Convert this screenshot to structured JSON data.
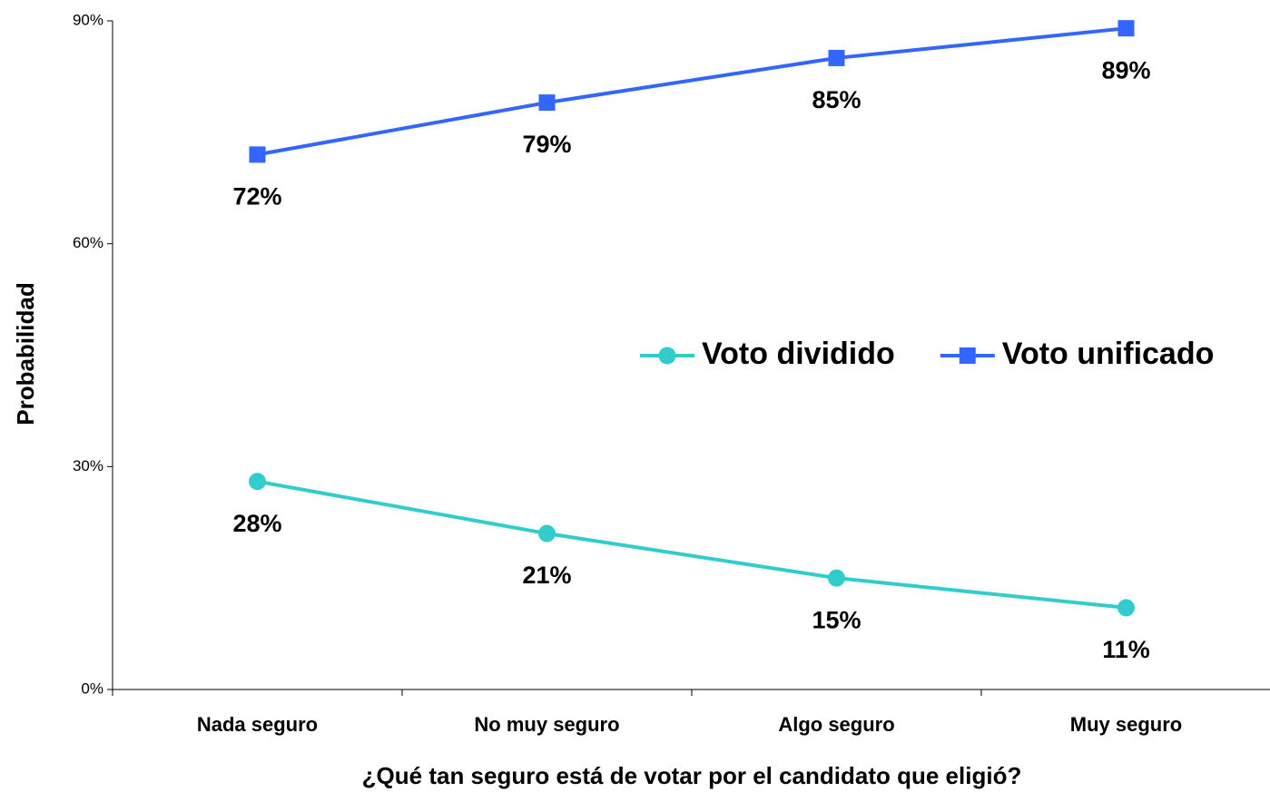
{
  "chart_data": {
    "type": "line",
    "x_label": "¿Qué tan seguro está de votar por el candidato que eligió?",
    "y_label": "Probabilidad",
    "categories": [
      "Nada seguro",
      "No muy seguro",
      "Algo seguro",
      "Muy seguro"
    ],
    "series": [
      {
        "name": "Voto dividido",
        "color": "#33cccc",
        "marker": "circle",
        "values": [
          28,
          21,
          15,
          11
        ],
        "value_labels": [
          "28%",
          "21%",
          "15%",
          "11%"
        ]
      },
      {
        "name": "Voto unificado",
        "color": "#3366ff",
        "marker": "square",
        "values": [
          72,
          79,
          85,
          89
        ],
        "value_labels": [
          "72%",
          "79%",
          "85%",
          "89%"
        ]
      }
    ],
    "ylim": [
      0,
      90
    ],
    "yticks": [
      {
        "value": 0,
        "label": "0%"
      },
      {
        "value": 30,
        "label": "30%"
      },
      {
        "value": 60,
        "label": "60%"
      },
      {
        "value": 90,
        "label": "90%"
      }
    ],
    "grid": false,
    "legend": "right"
  }
}
